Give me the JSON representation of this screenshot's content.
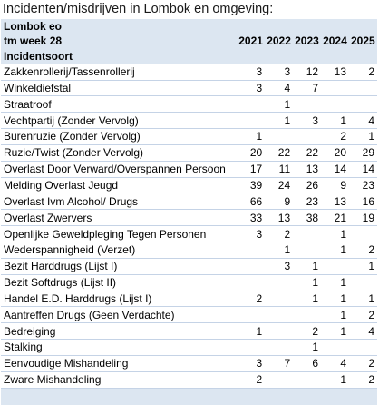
{
  "title": "Incidenten/misdrijven in Lombok en omgeving:",
  "header": {
    "line1": "Lombok eo",
    "line2": "tm week 28",
    "line3": "Incidentsoort",
    "years": [
      "2021",
      "2022",
      "2023",
      "2024",
      "2025"
    ]
  },
  "rows": [
    {
      "name": "Zakkenrollerij/Tassenrollerij",
      "values": [
        "3",
        "3",
        "12",
        "13",
        "2"
      ]
    },
    {
      "name": "Winkeldiefstal",
      "values": [
        "3",
        "4",
        "7",
        "",
        ""
      ]
    },
    {
      "name": "Straatroof",
      "values": [
        "",
        "1",
        "",
        "",
        ""
      ]
    },
    {
      "name": "Vechtpartij (Zonder Vervolg)",
      "values": [
        "",
        "1",
        "3",
        "1",
        "4"
      ]
    },
    {
      "name": "Burenruzie (Zonder Vervolg)",
      "values": [
        "1",
        "",
        "",
        "2",
        "1"
      ]
    },
    {
      "name": "Ruzie/Twist (Zonder Vervolg)",
      "values": [
        "20",
        "22",
        "22",
        "20",
        "29"
      ]
    },
    {
      "name": "Overlast Door Verward/Overspannen Persoon",
      "values": [
        "17",
        "11",
        "13",
        "14",
        "14"
      ]
    },
    {
      "name": "Melding Overlast Jeugd",
      "values": [
        "39",
        "24",
        "26",
        "9",
        "23"
      ]
    },
    {
      "name": "Overlast Ivm Alcohol/ Drugs",
      "values": [
        "66",
        "9",
        "23",
        "13",
        "16"
      ]
    },
    {
      "name": "Overlast Zwervers",
      "values": [
        "33",
        "13",
        "38",
        "21",
        "19"
      ]
    },
    {
      "name": "Openlijke Geweldpleging Tegen Personen",
      "values": [
        "3",
        "2",
        "",
        "1",
        ""
      ]
    },
    {
      "name": "Wederspannigheid (Verzet)",
      "values": [
        "",
        "1",
        "",
        "1",
        "2"
      ]
    },
    {
      "name": "Bezit Harddrugs (Lijst I)",
      "values": [
        "",
        "3",
        "1",
        "",
        "1"
      ]
    },
    {
      "name": "Bezit Softdrugs (Lijst II)",
      "values": [
        "",
        "",
        "1",
        "1",
        ""
      ]
    },
    {
      "name": "Handel E.D. Harddrugs (Lijst I)",
      "values": [
        "2",
        "",
        "1",
        "1",
        "1"
      ]
    },
    {
      "name": "Aantreffen Drugs (Geen Verdachte)",
      "values": [
        "",
        "",
        "",
        "1",
        "2"
      ]
    },
    {
      "name": "Bedreiging",
      "values": [
        "1",
        "",
        "2",
        "1",
        "4"
      ]
    },
    {
      "name": "Stalking",
      "values": [
        "",
        "",
        "1",
        "",
        ""
      ]
    },
    {
      "name": "Eenvoudige Mishandeling",
      "values": [
        "3",
        "7",
        "6",
        "4",
        "2"
      ]
    },
    {
      "name": "Zware Mishandeling",
      "values": [
        "2",
        "",
        "",
        "1",
        "2"
      ]
    }
  ]
}
